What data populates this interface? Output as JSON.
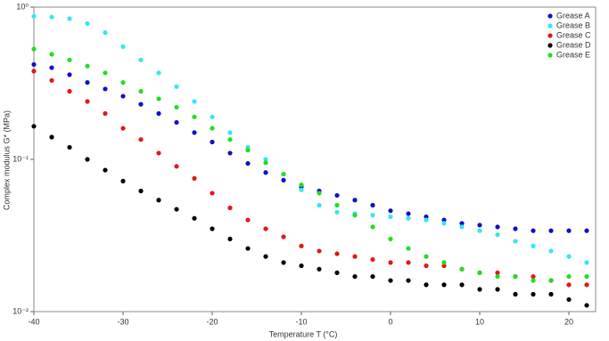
{
  "chart_data": {
    "type": "scatter",
    "xlabel": "Temperature T (°C)",
    "ylabel": "Complex modulus G* (MPa)",
    "x": [
      -40,
      -38,
      -36,
      -34,
      -32,
      -30,
      -28,
      -26,
      -24,
      -22,
      -20,
      -18,
      -16,
      -14,
      -12,
      -10,
      -8,
      -6,
      -4,
      -2,
      0,
      2,
      4,
      6,
      8,
      10,
      12,
      14,
      16,
      18,
      20,
      22
    ],
    "series": [
      {
        "name": "Grease A",
        "color": "#1010c8",
        "values": [
          0.42,
          0.4,
          0.36,
          0.32,
          0.29,
          0.26,
          0.23,
          0.2,
          0.175,
          0.15,
          0.13,
          0.11,
          0.094,
          0.082,
          0.073,
          0.066,
          0.062,
          0.058,
          0.054,
          0.05,
          0.046,
          0.044,
          0.042,
          0.04,
          0.038,
          0.037,
          0.036,
          0.035,
          0.034,
          0.034,
          0.034,
          0.034
        ]
      },
      {
        "name": "Grease B",
        "color": "#33e8f0",
        "values": [
          0.87,
          0.86,
          0.84,
          0.78,
          0.68,
          0.55,
          0.45,
          0.37,
          0.3,
          0.24,
          0.19,
          0.15,
          0.12,
          0.1,
          0.08,
          0.063,
          0.05,
          0.045,
          0.044,
          0.043,
          0.042,
          0.041,
          0.04,
          0.038,
          0.036,
          0.034,
          0.032,
          0.029,
          0.027,
          0.025,
          0.023,
          0.021
        ]
      },
      {
        "name": "Grease C",
        "color": "#e01818",
        "values": [
          0.38,
          0.33,
          0.28,
          0.24,
          0.2,
          0.16,
          0.135,
          0.11,
          0.09,
          0.075,
          0.06,
          0.048,
          0.04,
          0.035,
          0.031,
          0.027,
          0.025,
          0.024,
          0.023,
          0.022,
          0.021,
          0.021,
          0.02,
          0.02,
          0.019,
          0.018,
          0.018,
          0.017,
          0.017,
          0.016,
          0.015,
          0.015
        ]
      },
      {
        "name": "Grease D",
        "color": "#000000",
        "values": [
          0.165,
          0.14,
          0.12,
          0.1,
          0.085,
          0.072,
          0.062,
          0.054,
          0.047,
          0.041,
          0.035,
          0.03,
          0.026,
          0.023,
          0.021,
          0.02,
          0.019,
          0.018,
          0.017,
          0.017,
          0.016,
          0.016,
          0.015,
          0.015,
          0.015,
          0.014,
          0.014,
          0.013,
          0.013,
          0.013,
          0.012,
          0.011
        ]
      },
      {
        "name": "Grease E",
        "color": "#22dd22",
        "values": [
          0.53,
          0.49,
          0.45,
          0.41,
          0.37,
          0.32,
          0.28,
          0.25,
          0.22,
          0.19,
          0.16,
          0.135,
          0.115,
          0.095,
          0.08,
          0.068,
          0.06,
          0.05,
          0.043,
          0.036,
          0.03,
          0.026,
          0.023,
          0.021,
          0.019,
          0.018,
          0.017,
          0.017,
          0.016,
          0.016,
          0.017,
          0.017
        ]
      }
    ],
    "xlim": [
      -40,
      23
    ],
    "xticks": [
      -40,
      -30,
      -20,
      -10,
      0,
      10,
      20
    ],
    "ylim": [
      0.01,
      1
    ],
    "yticks": [
      {
        "value": 1,
        "label": "10⁰"
      },
      {
        "value": 0.1,
        "label": "10⁻¹"
      },
      {
        "value": 0.01,
        "label": "10⁻²"
      }
    ],
    "log_y": true,
    "grid": false,
    "legend": "top-right"
  }
}
